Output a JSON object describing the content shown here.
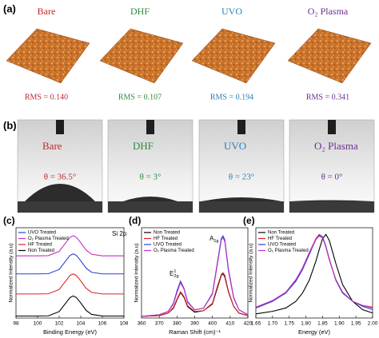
{
  "panel_a": {
    "label": "(a)"
  },
  "panel_b": {
    "label": "(b)"
  },
  "samples": [
    {
      "name": "Bare",
      "color": "#c1272d",
      "rms": "RMS = 0.140",
      "contact_angle": "θ = 36.5°"
    },
    {
      "name": "DHF",
      "color": "#2e8b3e",
      "rms": "RMS = 0.107",
      "contact_angle": "θ = 3°"
    },
    {
      "name": "UVO",
      "color": "#2a7fb8",
      "rms": "RMS = 0.194",
      "contact_angle": "θ = 23°"
    },
    {
      "name": "O₂ Plasma",
      "color": "#6a2f8f",
      "rms": "RMS = 0.341",
      "contact_angle": "θ = 0°"
    }
  ],
  "chart_data": [
    {
      "type": "line",
      "panel_label": "(c)",
      "xlabel": "Binding Energy (eV)",
      "ylabel": "Normalized Intensity (a.u)",
      "annotations": [
        {
          "text": "Si 2p"
        }
      ],
      "legend": "upper left",
      "x": [
        98,
        100,
        101,
        102,
        102.5,
        103,
        103.3,
        103.6,
        104,
        104.5,
        105,
        106,
        108
      ],
      "xlim": [
        98,
        108
      ],
      "xticks": [
        98,
        100,
        102,
        104,
        106,
        108
      ],
      "ylim": [
        -0.1,
        4.4
      ],
      "series": [
        {
          "name": "UVO Treated",
          "color": "#2b3fd6",
          "values": [
            2.1,
            2.1,
            2.11,
            2.32,
            2.67,
            3.02,
            3.1,
            3.02,
            2.75,
            2.38,
            2.18,
            2.1,
            2.1
          ]
        },
        {
          "name": "O₂ Plasma Treated",
          "color": "#c030c0",
          "values": [
            3.0,
            3.0,
            3.01,
            3.22,
            3.57,
            3.92,
            4.0,
            3.92,
            3.65,
            3.28,
            3.08,
            3.0,
            3.0
          ]
        },
        {
          "name": "HF Treated",
          "color": "#e0202a",
          "values": [
            1.1,
            1.1,
            1.11,
            1.32,
            1.67,
            2.02,
            2.1,
            2.02,
            1.75,
            1.38,
            1.18,
            1.1,
            1.1
          ]
        },
        {
          "name": "Non Treated",
          "color": "#000000",
          "values": [
            0,
            0,
            0.01,
            0.22,
            0.57,
            0.92,
            1,
            0.92,
            0.65,
            0.28,
            0.08,
            0,
            0
          ]
        }
      ]
    },
    {
      "type": "line",
      "panel_label": "(d)",
      "xlabel": "Raman Shift (cm)⁻¹",
      "ylabel": "Normalized Intensity (a.u)",
      "annotations": [
        {
          "base": "E",
          "sup": "1",
          "sub": "2g"
        },
        {
          "base": "A",
          "sub": "1g"
        }
      ],
      "legend": "upper left",
      "x": [
        360,
        370,
        375,
        378,
        380,
        382,
        384,
        386,
        390,
        395,
        400,
        403,
        405,
        406,
        407,
        409,
        412,
        415,
        420
      ],
      "xlim": [
        360,
        420
      ],
      "xticks": [
        360,
        370,
        380,
        390,
        400,
        410,
        420
      ],
      "ylim": [
        0,
        1.1
      ],
      "series": [
        {
          "name": "Non Treated",
          "color": "#000000",
          "values": [
            0.02,
            0.03,
            0.06,
            0.12,
            0.22,
            0.31,
            0.25,
            0.14,
            0.07,
            0.09,
            0.17,
            0.38,
            0.52,
            0.54,
            0.5,
            0.32,
            0.14,
            0.06,
            0.03
          ]
        },
        {
          "name": "HF Treated",
          "color": "#e0202a",
          "values": [
            0.02,
            0.03,
            0.06,
            0.13,
            0.23,
            0.32,
            0.26,
            0.15,
            0.08,
            0.09,
            0.18,
            0.4,
            0.53,
            0.55,
            0.52,
            0.33,
            0.14,
            0.06,
            0.03
          ]
        },
        {
          "name": "UVO Treated",
          "color": "#2b3fd6",
          "values": [
            0.02,
            0.04,
            0.08,
            0.18,
            0.33,
            0.45,
            0.36,
            0.2,
            0.1,
            0.12,
            0.3,
            0.7,
            0.97,
            1.0,
            0.95,
            0.6,
            0.25,
            0.1,
            0.04
          ]
        },
        {
          "name": "O₂ Plasma Treated",
          "color": "#c030c0",
          "values": [
            0.02,
            0.04,
            0.08,
            0.17,
            0.31,
            0.43,
            0.35,
            0.19,
            0.1,
            0.12,
            0.29,
            0.68,
            0.95,
            0.98,
            0.93,
            0.58,
            0.24,
            0.1,
            0.04
          ]
        }
      ]
    },
    {
      "type": "line",
      "panel_label": "(e)",
      "xlabel": "Energy (eV)",
      "ylabel": "Normalized Intensity (a.u)",
      "legend": "upper left",
      "x": [
        1.65,
        1.7,
        1.74,
        1.77,
        1.79,
        1.81,
        1.83,
        1.84,
        1.85,
        1.86,
        1.87,
        1.89,
        1.91,
        1.94,
        1.97,
        2.0
      ],
      "xlim": [
        1.65,
        2.0
      ],
      "xticks": [
        {
          "value": 1.65,
          "label": "1.65"
        },
        {
          "value": 1.7,
          "label": "1.70"
        },
        {
          "value": 1.75,
          "label": "1.75"
        },
        {
          "value": 1.8,
          "label": "1.80"
        },
        {
          "value": 1.85,
          "label": "1.85"
        },
        {
          "value": 1.9,
          "label": "1.90"
        },
        {
          "value": 1.95,
          "label": "1.95"
        },
        {
          "value": 2.0,
          "label": "2.00"
        }
      ],
      "ylim": [
        0,
        1.08
      ],
      "series": [
        {
          "name": "Non Treated",
          "color": "#000000",
          "values": [
            0.05,
            0.08,
            0.12,
            0.2,
            0.3,
            0.45,
            0.68,
            0.82,
            0.95,
            1.0,
            0.93,
            0.65,
            0.4,
            0.2,
            0.1,
            0.06
          ]
        },
        {
          "name": "HF Treated",
          "color": "#e0202a",
          "values": [
            0.12,
            0.2,
            0.3,
            0.45,
            0.6,
            0.78,
            0.95,
            1.0,
            0.97,
            0.85,
            0.7,
            0.45,
            0.3,
            0.2,
            0.15,
            0.13
          ]
        },
        {
          "name": "UVO Treated",
          "color": "#2b3fd6",
          "values": [
            0.12,
            0.2,
            0.3,
            0.44,
            0.58,
            0.76,
            0.94,
            0.99,
            0.97,
            0.86,
            0.71,
            0.45,
            0.3,
            0.2,
            0.14,
            0.1
          ]
        },
        {
          "name": "O₂ Plasma Treated",
          "color": "#c030c0",
          "values": [
            0.13,
            0.21,
            0.31,
            0.46,
            0.6,
            0.78,
            0.94,
            0.98,
            0.96,
            0.85,
            0.7,
            0.46,
            0.31,
            0.2,
            0.15,
            0.12
          ]
        }
      ]
    }
  ]
}
